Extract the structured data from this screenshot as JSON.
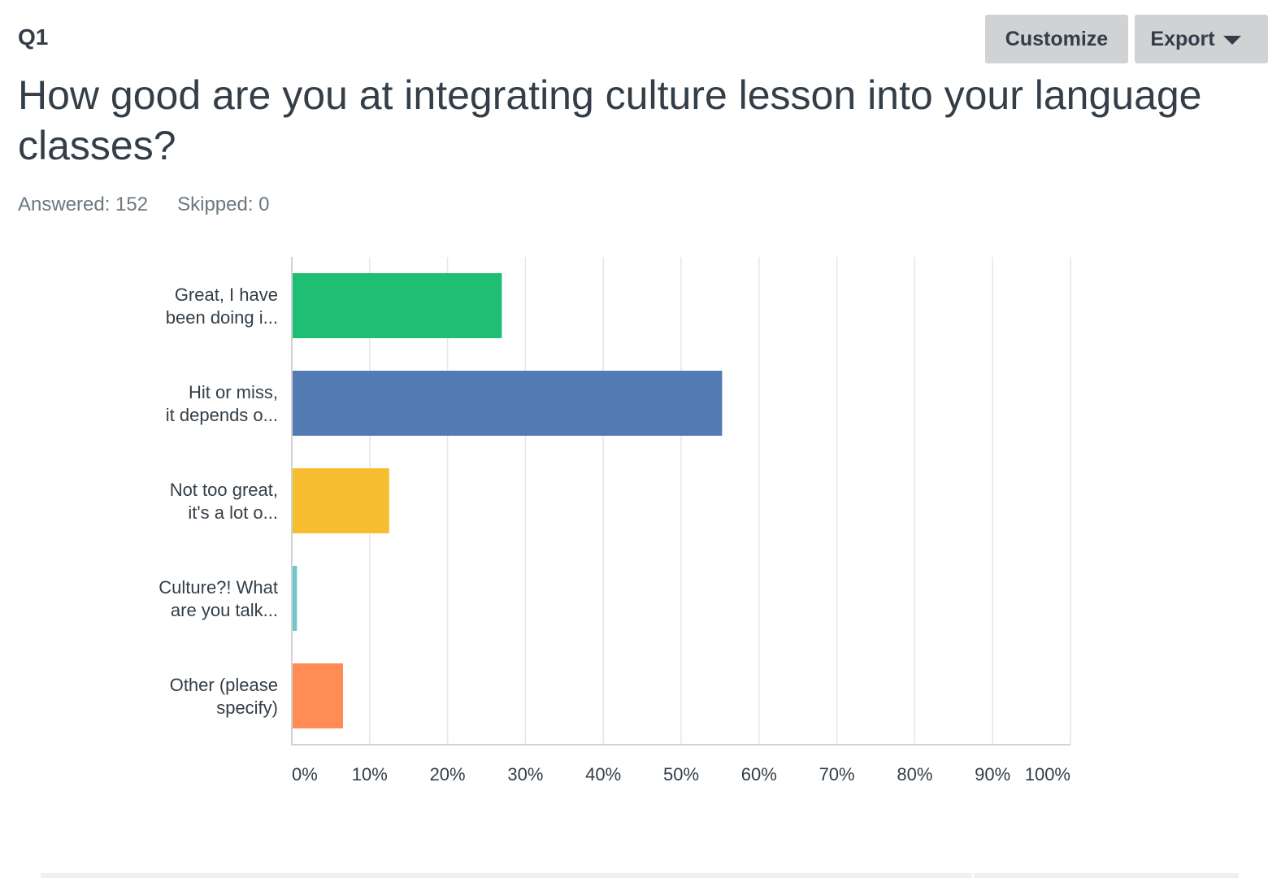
{
  "question": {
    "number": "Q1",
    "title": "How good are you at integrating culture lesson into your language classes?",
    "answered": "Answered: 152",
    "skipped": "Skipped: 0"
  },
  "toolbar": {
    "customize_label": "Customize",
    "export_label": "Export",
    "export_icon": "caret-down-icon"
  },
  "colors": {
    "green": "#1fbf73",
    "blue": "#527bb3",
    "yellow": "#f6be2e",
    "teal": "#6bc8cd",
    "orange": "#ff8b55"
  },
  "chart_data": {
    "type": "bar",
    "orientation": "horizontal",
    "categories": [
      [
        "Great, I have",
        "been doing i..."
      ],
      [
        "Hit or miss,",
        "it depends o..."
      ],
      [
        "Not too great,",
        "it's a lot o..."
      ],
      [
        "Culture?! What",
        "are you talk..."
      ],
      [
        "Other (please",
        "specify)"
      ]
    ],
    "values": [
      26.97,
      55.26,
      12.5,
      0.66,
      6.58
    ],
    "bar_colors": [
      "#1fbf73",
      "#527bb3",
      "#f6be2e",
      "#6bc8cd",
      "#ff8b55"
    ],
    "xlim": [
      0,
      100
    ],
    "xticks": [
      "0%",
      "10%",
      "20%",
      "30%",
      "40%",
      "50%",
      "60%",
      "70%",
      "80%",
      "90%",
      "100%"
    ],
    "grid": true
  }
}
